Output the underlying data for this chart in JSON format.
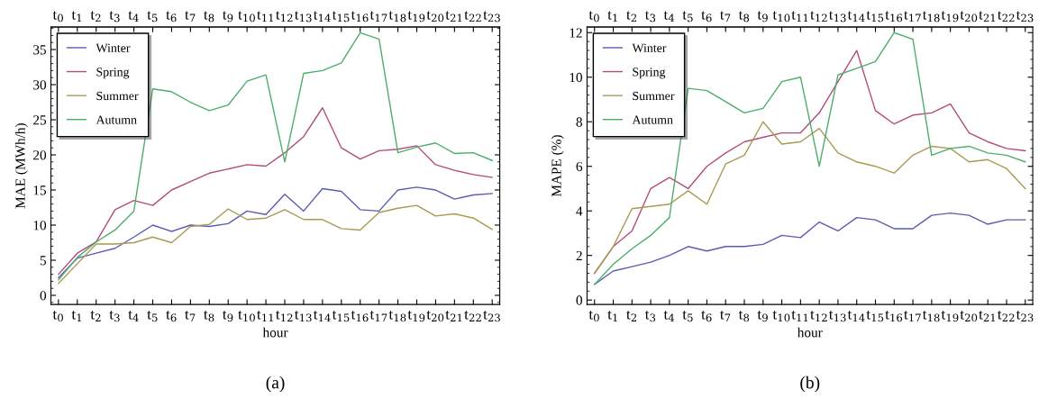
{
  "chart_data": [
    {
      "type": "line",
      "xlabel": "hour",
      "ylabel": "MAE (MWh/h)",
      "annotations": [
        "(a)"
      ],
      "legend": "top left",
      "grid": false,
      "marker": "none",
      "line_style": "solid",
      "categories": [
        "t$_{0}$",
        "t$_{1}$",
        "t$_{2}$",
        "t$_{3}$",
        "t$_{4}$",
        "t$_{5}$",
        "t$_{6}$",
        "t$_{7}$",
        "t$_{8}$",
        "t$_{9}$",
        "t$_{10}$",
        "t$_{11}$",
        "t$_{12}$",
        "t$_{13}$",
        "t$_{14}$",
        "t$_{15}$",
        "t$_{16}$",
        "t$_{17}$",
        "t$_{18}$",
        "t$_{19}$",
        "t$_{20}$",
        "t$_{21}$",
        "t$_{22}$",
        "t$_{23}$"
      ],
      "ylim": [
        -1.3,
        38.2
      ],
      "yticks": [
        0,
        5,
        10,
        15,
        20,
        25,
        30,
        35
      ],
      "series": [
        {
          "name": "Winter",
          "color": "#5b5bb5",
          "values": [
            2.5,
            5.3,
            6.0,
            6.7,
            8.3,
            10.0,
            9.1,
            10.0,
            9.8,
            10.2,
            12.0,
            11.5,
            14.4,
            12.0,
            15.2,
            14.8,
            12.2,
            12.0,
            15.0,
            15.4,
            15.0,
            13.7,
            14.3,
            14.5
          ]
        },
        {
          "name": "Spring",
          "color": "#b54a7a",
          "values": [
            3.0,
            6.0,
            7.6,
            12.2,
            13.5,
            12.8,
            15.0,
            16.2,
            17.4,
            18.0,
            18.6,
            18.4,
            20.3,
            22.6,
            26.7,
            21.0,
            19.4,
            20.6,
            20.8,
            21.3,
            18.6,
            17.8,
            17.2,
            16.8
          ]
        },
        {
          "name": "Summer",
          "color": "#a89a4f",
          "values": [
            1.7,
            4.5,
            7.3,
            7.3,
            7.5,
            8.3,
            7.5,
            9.8,
            10.1,
            12.3,
            10.8,
            11.0,
            12.2,
            10.8,
            10.8,
            9.5,
            9.3,
            11.8,
            12.4,
            12.8,
            11.3,
            11.6,
            11.0,
            9.4
          ]
        },
        {
          "name": "Autumn",
          "color": "#4cae6a",
          "values": [
            2.2,
            5.4,
            7.6,
            9.3,
            12.0,
            29.4,
            29.0,
            27.5,
            26.3,
            27.1,
            30.5,
            31.4,
            19.0,
            31.6,
            32.0,
            33.1,
            37.4,
            36.5,
            20.3,
            21.1,
            21.7,
            20.2,
            20.3,
            19.2
          ]
        }
      ]
    },
    {
      "type": "line",
      "xlabel": "hour",
      "ylabel": "MAPE (%)",
      "annotations": [
        "(b)"
      ],
      "legend": "top left",
      "grid": false,
      "marker": "none",
      "line_style": "solid",
      "categories": [
        "t$_{0}$",
        "t$_{1}$",
        "t$_{2}$",
        "t$_{3}$",
        "t$_{4}$",
        "t$_{5}$",
        "t$_{6}$",
        "t$_{7}$",
        "t$_{8}$",
        "t$_{9}$",
        "t$_{10}$",
        "t$_{11}$",
        "t$_{12}$",
        "t$_{13}$",
        "t$_{14}$",
        "t$_{15}$",
        "t$_{16}$",
        "t$_{17}$",
        "t$_{18}$",
        "t$_{19}$",
        "t$_{20}$",
        "t$_{21}$",
        "t$_{22}$",
        "t$_{23}$"
      ],
      "ylim": [
        -0.2,
        12.25
      ],
      "yticks": [
        0,
        2,
        4,
        6,
        8,
        10,
        12
      ],
      "series": [
        {
          "name": "Winter",
          "color": "#5b5bb5",
          "values": [
            0.7,
            1.3,
            1.5,
            1.7,
            2.0,
            2.4,
            2.2,
            2.4,
            2.4,
            2.5,
            2.9,
            2.8,
            3.5,
            3.1,
            3.7,
            3.6,
            3.2,
            3.2,
            3.8,
            3.9,
            3.8,
            3.4,
            3.6,
            3.6
          ]
        },
        {
          "name": "Spring",
          "color": "#b54a7a",
          "values": [
            1.2,
            2.4,
            3.1,
            5.0,
            5.5,
            5.0,
            6.0,
            6.6,
            7.1,
            7.3,
            7.5,
            7.5,
            8.4,
            9.8,
            11.2,
            8.5,
            7.9,
            8.3,
            8.4,
            8.8,
            7.5,
            7.1,
            6.8,
            6.7
          ]
        },
        {
          "name": "Summer",
          "color": "#a89a4f",
          "values": [
            1.2,
            2.4,
            4.1,
            4.2,
            4.3,
            4.9,
            4.3,
            6.1,
            6.5,
            8.0,
            7.0,
            7.1,
            7.7,
            6.6,
            6.2,
            6.0,
            5.7,
            6.5,
            6.9,
            6.8,
            6.2,
            6.3,
            5.9,
            5.0
          ]
        },
        {
          "name": "Autumn",
          "color": "#4cae6a",
          "values": [
            0.7,
            1.6,
            2.3,
            2.9,
            3.7,
            9.5,
            9.4,
            8.9,
            8.4,
            8.6,
            9.8,
            10.0,
            6.0,
            10.1,
            10.4,
            10.7,
            12.0,
            11.7,
            6.5,
            6.8,
            6.9,
            6.6,
            6.5,
            6.2
          ]
        }
      ]
    }
  ]
}
